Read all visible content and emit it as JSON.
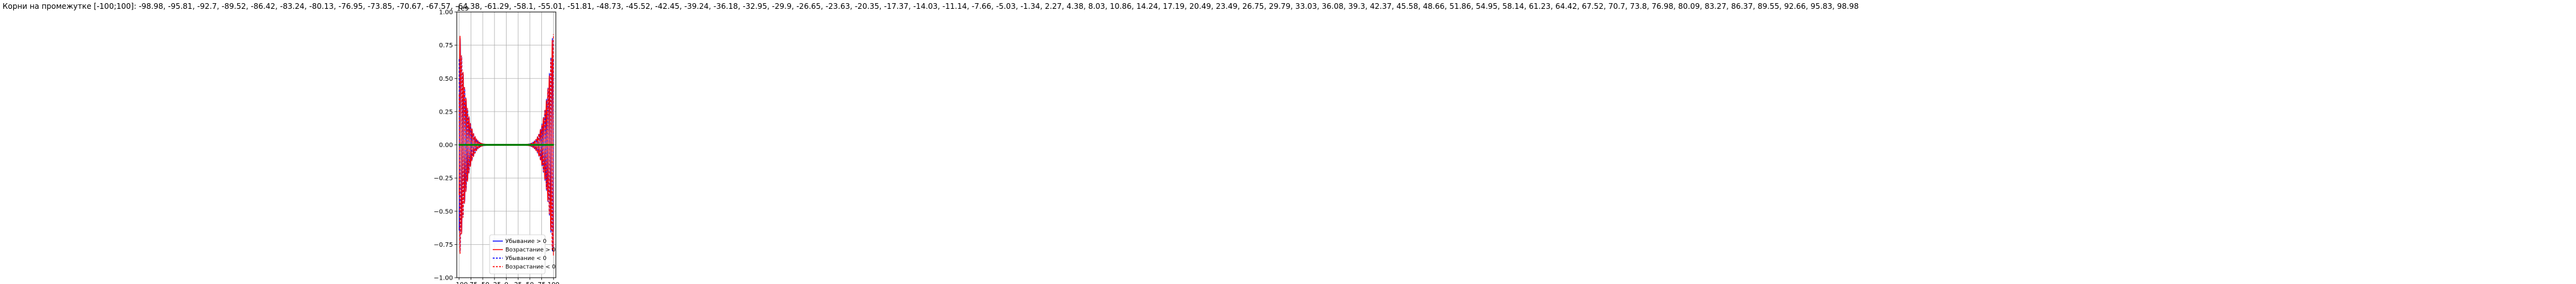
{
  "chart_data": {
    "type": "line",
    "title": "Корни на промежутке [-100;100]: -98.98, -95.81, -92.7, -89.52, -86.42, -83.24, -80.13, -76.95, -73.85, -70.67, -67.57, -64.38, -61.29, -58.1, -55.01, -51.81, -48.73, -45.52, -42.45, -39.24, -36.18, -32.95, -29.9, -26.65, -23.63, -20.35, -17.37, -14.03, -11.14, -7.66, -5.03, -1.34, 2.27, 4.38, 8.03, 10.86, 14.24, 17.19, 20.49, 23.49, 26.75, 29.79, 33.03, 36.08, 39.3, 42.37, 45.58, 48.66, 51.86, 54.95, 58.14, 61.23, 64.42, 67.52, 70.7, 73.8, 76.98, 80.09, 83.27, 86.37, 89.55, 92.66, 95.83, 98.98",
    "xlim": [
      -105,
      105
    ],
    "ylim": [
      -1.0,
      1.0
    ],
    "y_offset_label": "1e9",
    "x_ticks": [
      -100,
      -75,
      -50,
      -25,
      0,
      25,
      50,
      75,
      100
    ],
    "x_tick_labels": [
      "−100",
      "−75",
      "−50",
      "−25",
      "0",
      "25",
      "50",
      "75",
      "100"
    ],
    "y_ticks": [
      -1.0,
      -0.75,
      -0.5,
      -0.25,
      0.0,
      0.25,
      0.5,
      0.75,
      1.0
    ],
    "y_tick_labels": [
      "−1.00",
      "−0.75",
      "−0.50",
      "−0.25",
      "0.00",
      "0.25",
      "0.50",
      "0.75",
      "1.00"
    ],
    "grid": true,
    "legend_position": "lower-center",
    "roots": [
      -98.98,
      -95.81,
      -92.7,
      -89.52,
      -86.42,
      -83.24,
      -80.13,
      -76.95,
      -73.85,
      -70.67,
      -67.57,
      -64.38,
      -61.29,
      -58.1,
      -55.01,
      -51.81,
      -48.73,
      -45.52,
      -42.45,
      -39.24,
      -36.18,
      -32.95,
      -29.9,
      -26.65,
      -23.63,
      -20.35,
      -17.37,
      -14.03,
      -11.14,
      -7.66,
      -5.03,
      -1.34,
      2.27,
      4.38,
      8.03,
      10.86,
      14.24,
      17.19,
      20.49,
      23.49,
      26.75,
      29.79,
      33.03,
      36.08,
      39.3,
      42.37,
      45.58,
      48.66,
      51.86,
      54.95,
      58.14,
      61.23,
      64.42,
      67.52,
      70.7,
      73.8,
      76.98,
      80.09,
      83.27,
      86.37,
      89.55,
      92.66,
      95.83,
      98.98
    ],
    "series": [
      {
        "name": "Убывание > 0",
        "color": "#0000ff",
        "style": "solid"
      },
      {
        "name": "Возрастание > 0",
        "color": "#ff0000",
        "style": "solid"
      },
      {
        "name": "Убывание < 0",
        "color": "#0000ff",
        "style": "dashed"
      },
      {
        "name": "Возрастание < 0",
        "color": "#ff0000",
        "style": "dashed"
      }
    ],
    "root_marker_color": "#008000"
  }
}
